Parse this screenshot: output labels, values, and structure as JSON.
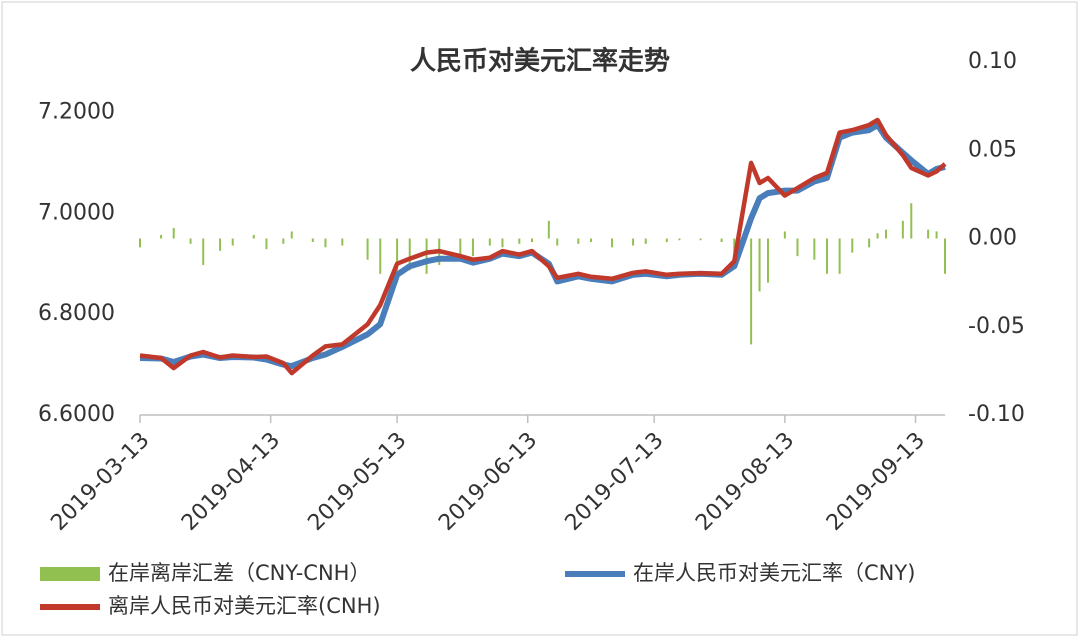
{
  "chart_data": {
    "type": "bar-line",
    "title": "人民币对美元汇率走势",
    "x": [
      "2019-03-13",
      "2019-03-18",
      "2019-03-21",
      "2019-03-25",
      "2019-03-28",
      "2019-04-01",
      "2019-04-04",
      "2019-04-09",
      "2019-04-12",
      "2019-04-16",
      "2019-04-18",
      "2019-04-23",
      "2019-04-26",
      "2019-04-30",
      "2019-05-06",
      "2019-05-09",
      "2019-05-13",
      "2019-05-16",
      "2019-05-20",
      "2019-05-23",
      "2019-05-28",
      "2019-05-31",
      "2019-06-04",
      "2019-06-07",
      "2019-06-11",
      "2019-06-14",
      "2019-06-18",
      "2019-06-20",
      "2019-06-25",
      "2019-06-28",
      "2019-07-03",
      "2019-07-08",
      "2019-07-11",
      "2019-07-16",
      "2019-07-19",
      "2019-07-24",
      "2019-07-29",
      "2019-08-01",
      "2019-08-05",
      "2019-08-07",
      "2019-08-09",
      "2019-08-13",
      "2019-08-16",
      "2019-08-20",
      "2019-08-23",
      "2019-08-26",
      "2019-08-29",
      "2019-09-02",
      "2019-09-04",
      "2019-09-06",
      "2019-09-10",
      "2019-09-12",
      "2019-09-16",
      "2019-09-18",
      "2019-09-20"
    ],
    "series": [
      {
        "name": "在岸离岸汇差（CNY-CNH）",
        "kind": "bar",
        "axis": "y2",
        "color": "#92c050",
        "values": [
          -0.005,
          0.002,
          0.006,
          -0.003,
          -0.015,
          -0.007,
          -0.004,
          0.002,
          -0.006,
          -0.003,
          0.004,
          -0.002,
          -0.005,
          -0.004,
          -0.012,
          -0.02,
          -0.025,
          -0.018,
          -0.02,
          -0.015,
          -0.012,
          -0.01,
          -0.004,
          -0.005,
          -0.003,
          -0.002,
          0.01,
          -0.004,
          -0.003,
          -0.002,
          -0.005,
          -0.004,
          -0.003,
          -0.002,
          -0.001,
          -0.001,
          -0.002,
          -0.01,
          -0.06,
          -0.03,
          -0.025,
          0.004,
          -0.01,
          -0.012,
          -0.02,
          -0.02,
          -0.008,
          -0.005,
          0.003,
          0.005,
          0.01,
          0.02,
          0.005,
          0.004,
          -0.02
        ]
      },
      {
        "name": "在岸人民币对美元汇率（CNY)",
        "kind": "line",
        "color": "#4a7ebb",
        "values": [
          6.713,
          6.712,
          6.705,
          6.716,
          6.72,
          6.713,
          6.715,
          6.714,
          6.71,
          6.7,
          6.697,
          6.713,
          6.72,
          6.735,
          6.76,
          6.78,
          6.878,
          6.895,
          6.905,
          6.91,
          6.91,
          6.902,
          6.91,
          6.92,
          6.915,
          6.922,
          6.9,
          6.865,
          6.875,
          6.87,
          6.865,
          6.878,
          6.88,
          6.875,
          6.878,
          6.88,
          6.878,
          6.895,
          6.99,
          7.03,
          7.04,
          7.045,
          7.045,
          7.063,
          7.07,
          7.15,
          7.16,
          7.165,
          7.175,
          7.15,
          7.12,
          7.105,
          7.078,
          7.088,
          7.092
        ]
      },
      {
        "name": "离岸人民币对美元汇率(CNH)",
        "kind": "line",
        "color": "#c0392b",
        "values": [
          6.718,
          6.713,
          6.693,
          6.718,
          6.725,
          6.714,
          6.718,
          6.715,
          6.716,
          6.703,
          6.683,
          6.718,
          6.736,
          6.74,
          6.78,
          6.818,
          6.9,
          6.91,
          6.922,
          6.925,
          6.915,
          6.908,
          6.912,
          6.925,
          6.918,
          6.925,
          6.895,
          6.872,
          6.88,
          6.874,
          6.87,
          6.882,
          6.885,
          6.878,
          6.88,
          6.881,
          6.88,
          6.905,
          7.1,
          7.06,
          7.07,
          7.035,
          7.05,
          7.07,
          7.08,
          7.16,
          7.165,
          7.175,
          7.185,
          7.155,
          7.115,
          7.09,
          7.075,
          7.083,
          7.098
        ]
      }
    ],
    "xlim": [
      "2019-03-13",
      "2019-09-20"
    ],
    "xticks": [
      "2019-03-13",
      "2019-04-13",
      "2019-05-13",
      "2019-06-13",
      "2019-07-13",
      "2019-08-13",
      "2019-09-13"
    ],
    "ylim": [
      6.6,
      7.3
    ],
    "yticks": [
      {
        "value": 6.6,
        "label": "6.6000"
      },
      {
        "value": 6.8,
        "label": "6.8000"
      },
      {
        "value": 7.0,
        "label": "7.0000"
      },
      {
        "value": 7.2,
        "label": "7.2000"
      }
    ],
    "y2lim": [
      -0.1,
      0.1
    ],
    "y2ticks": [
      {
        "value": -0.1,
        "label": "-0.10"
      },
      {
        "value": -0.05,
        "label": "-0.05"
      },
      {
        "value": 0,
        "label": "0.00"
      },
      {
        "value": 0.05,
        "label": "0.05"
      },
      {
        "value": 0.1,
        "label": "0.10"
      }
    ],
    "grid": false,
    "legend": "bottom"
  }
}
